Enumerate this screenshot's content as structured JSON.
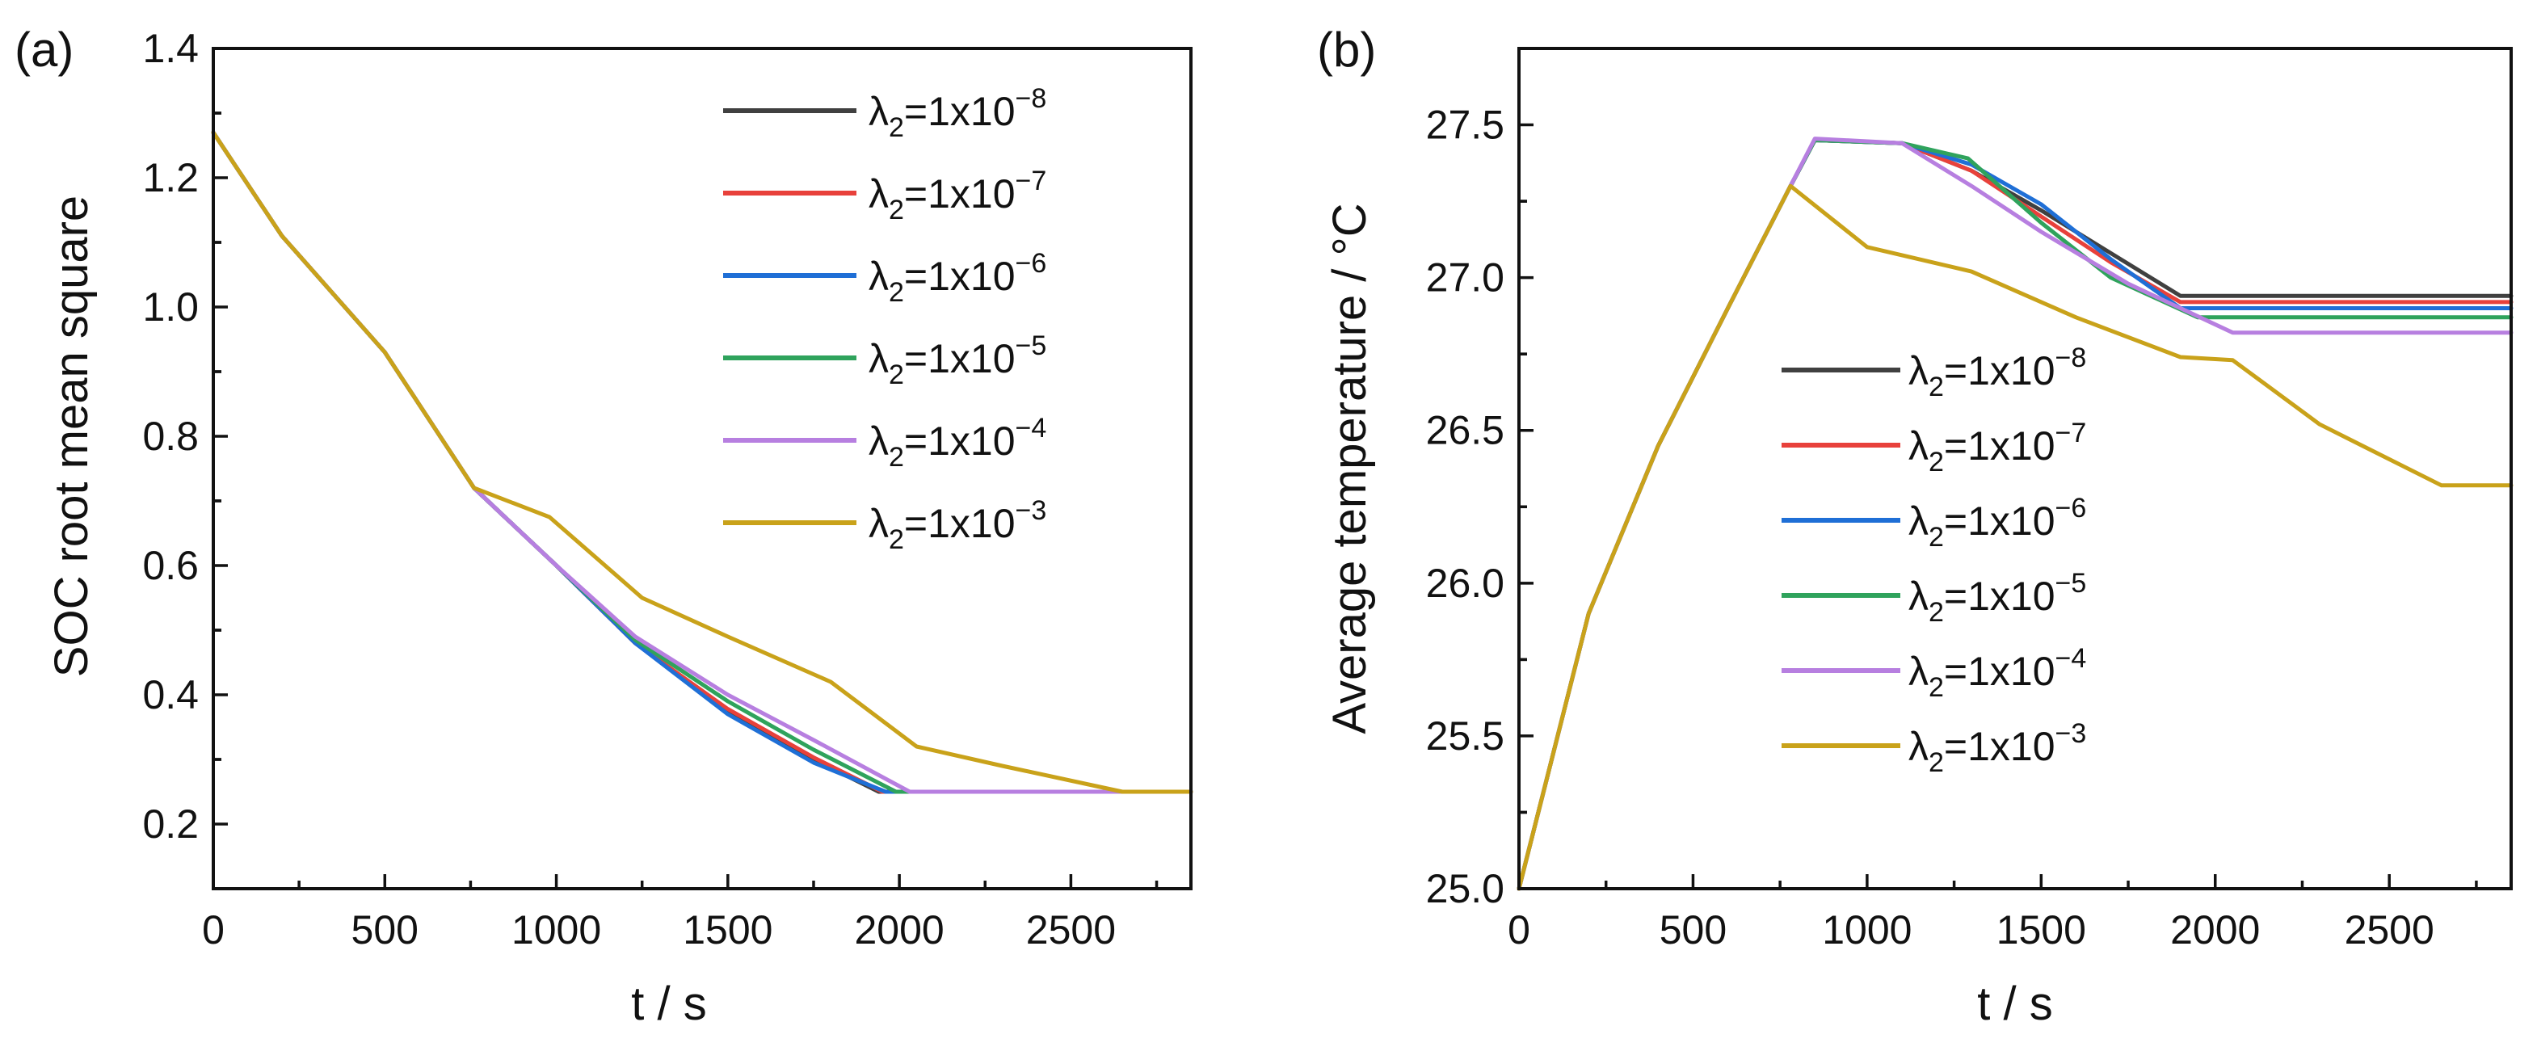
{
  "figure": {
    "panels": [
      {
        "panel_label": "(a)",
        "xlabel": "t / s",
        "ylabel": "SOC root mean square",
        "xlim": [
          0,
          2850
        ],
        "ylim": [
          0.1,
          1.4
        ],
        "xticks": [
          0,
          500,
          1000,
          1500,
          2000,
          2500
        ],
        "xtick_labels": [
          "0",
          "500",
          "1000",
          "1500",
          "2000",
          "2500"
        ],
        "yticks": [
          0.2,
          0.4,
          0.6,
          0.8,
          1.0,
          1.2,
          1.4
        ],
        "ytick_labels": [
          "0.2",
          "0.4",
          "0.6",
          "0.8",
          "1.0",
          "1.2",
          "1.4"
        ]
      },
      {
        "panel_label": "(b)",
        "xlabel": "t / s",
        "ylabel": "Average temperature / °C",
        "xlim": [
          0,
          2850
        ],
        "ylim": [
          25.0,
          27.75
        ],
        "xticks": [
          0,
          500,
          1000,
          1500,
          2000,
          2500
        ],
        "xtick_labels": [
          "0",
          "500",
          "1000",
          "1500",
          "2000",
          "2500"
        ],
        "yticks": [
          25.0,
          25.5,
          26.0,
          26.5,
          27.0,
          27.5
        ],
        "ytick_labels": [
          "25.0",
          "25.5",
          "26.0",
          "26.5",
          "27.0",
          "27.5"
        ]
      }
    ],
    "legend": [
      {
        "prefix": "λ",
        "sub": "2",
        "mid": "=1x10",
        "sup": "−8",
        "color": "#404040"
      },
      {
        "prefix": "λ",
        "sub": "2",
        "mid": "=1x10",
        "sup": "−7",
        "color": "#e8413b"
      },
      {
        "prefix": "λ",
        "sub": "2",
        "mid": "=1x10",
        "sup": "−6",
        "color": "#1f6fd6"
      },
      {
        "prefix": "λ",
        "sub": "2",
        "mid": "=1x10",
        "sup": "−5",
        "color": "#2fa35c"
      },
      {
        "prefix": "λ",
        "sub": "2",
        "mid": "=1x10",
        "sup": "−4",
        "color": "#b77fe0"
      },
      {
        "prefix": "λ",
        "sub": "2",
        "mid": "=1x10",
        "sup": "−3",
        "color": "#c9a21a"
      }
    ]
  },
  "chart_data": [
    {
      "type": "line",
      "title": "",
      "xlabel": "t / s",
      "ylabel": "SOC root mean square",
      "xlim": [
        0,
        2850
      ],
      "ylim": [
        0.1,
        1.4
      ],
      "series": [
        {
          "name": "λ2=1x10−8",
          "color": "#404040",
          "x": [
            0,
            200,
            500,
            760,
            840,
            1000,
            1230,
            1500,
            1750,
            1940,
            1950,
            2000,
            2850
          ],
          "y": [
            1.27,
            1.11,
            0.93,
            0.72,
            0.68,
            0.6,
            0.48,
            0.375,
            0.3,
            0.25,
            0.25,
            0.25,
            0.25
          ]
        },
        {
          "name": "λ2=1x10−7",
          "color": "#e8413b",
          "x": [
            0,
            200,
            500,
            760,
            840,
            1000,
            1230,
            1500,
            1750,
            1950,
            2000,
            2850
          ],
          "y": [
            1.27,
            1.11,
            0.93,
            0.72,
            0.68,
            0.6,
            0.48,
            0.378,
            0.303,
            0.25,
            0.25,
            0.25
          ]
        },
        {
          "name": "λ2=1x10−6",
          "color": "#1f6fd6",
          "x": [
            0,
            200,
            500,
            760,
            840,
            1000,
            1230,
            1500,
            1750,
            1960,
            2000,
            2850
          ],
          "y": [
            1.27,
            1.11,
            0.93,
            0.72,
            0.68,
            0.6,
            0.48,
            0.37,
            0.295,
            0.25,
            0.25,
            0.25
          ]
        },
        {
          "name": "λ2=1x10−5",
          "color": "#2fa35c",
          "x": [
            0,
            200,
            500,
            760,
            840,
            1000,
            1230,
            1500,
            1750,
            1990,
            2020,
            2850
          ],
          "y": [
            1.27,
            1.11,
            0.93,
            0.72,
            0.68,
            0.6,
            0.485,
            0.39,
            0.315,
            0.25,
            0.25,
            0.25
          ]
        },
        {
          "name": "λ2=1x10−4",
          "color": "#b77fe0",
          "x": [
            0,
            200,
            500,
            760,
            840,
            1000,
            1230,
            1500,
            1750,
            2030,
            2050,
            2850
          ],
          "y": [
            1.27,
            1.11,
            0.93,
            0.72,
            0.68,
            0.6,
            0.49,
            0.4,
            0.33,
            0.25,
            0.25,
            0.25
          ]
        },
        {
          "name": "λ2=1x10−3",
          "color": "#c9a21a",
          "x": [
            0,
            200,
            500,
            760,
            980,
            1250,
            1500,
            1800,
            2050,
            2300,
            2650,
            2850
          ],
          "y": [
            1.27,
            1.11,
            0.93,
            0.72,
            0.675,
            0.55,
            0.49,
            0.42,
            0.32,
            0.29,
            0.25,
            0.25
          ]
        }
      ]
    },
    {
      "type": "line",
      "title": "",
      "xlabel": "t / s",
      "ylabel": "Average temperature / °C",
      "xlim": [
        0,
        2850
      ],
      "ylim": [
        25.0,
        27.75
      ],
      "series": [
        {
          "name": "λ2=1x10−8",
          "color": "#404040",
          "x": [
            0,
            200,
            400,
            600,
            780,
            850,
            1100,
            1300,
            1500,
            1700,
            1900,
            2850
          ],
          "y": [
            25.0,
            25.9,
            26.45,
            26.9,
            27.3,
            27.45,
            27.44,
            27.35,
            27.22,
            27.08,
            26.94,
            26.94
          ]
        },
        {
          "name": "λ2=1x10−7",
          "color": "#e8413b",
          "x": [
            0,
            200,
            400,
            600,
            780,
            850,
            1100,
            1300,
            1500,
            1700,
            1900,
            2850
          ],
          "y": [
            25.0,
            25.9,
            26.45,
            26.9,
            27.3,
            27.45,
            27.44,
            27.35,
            27.2,
            27.05,
            26.92,
            26.92
          ]
        },
        {
          "name": "λ2=1x10−6",
          "color": "#1f6fd6",
          "x": [
            0,
            200,
            400,
            600,
            780,
            850,
            1100,
            1300,
            1500,
            1700,
            1900,
            2850
          ],
          "y": [
            25.0,
            25.9,
            26.45,
            26.9,
            27.3,
            27.45,
            27.44,
            27.37,
            27.24,
            27.06,
            26.9,
            26.9
          ]
        },
        {
          "name": "λ2=1x10−5",
          "color": "#2fa35c",
          "x": [
            0,
            200,
            400,
            600,
            780,
            850,
            1100,
            1290,
            1500,
            1700,
            1950,
            2850
          ],
          "y": [
            25.0,
            25.9,
            26.45,
            26.9,
            27.3,
            27.45,
            27.44,
            27.39,
            27.18,
            27.0,
            26.87,
            26.87
          ]
        },
        {
          "name": "λ2=1x10−4",
          "color": "#b77fe0",
          "x": [
            0,
            200,
            400,
            600,
            780,
            850,
            1100,
            1300,
            1500,
            1750,
            2050,
            2850
          ],
          "y": [
            25.0,
            25.9,
            26.45,
            26.9,
            27.3,
            27.455,
            27.44,
            27.3,
            27.15,
            26.98,
            26.82,
            26.82
          ]
        },
        {
          "name": "λ2=1x10−3",
          "color": "#c9a21a",
          "x": [
            0,
            200,
            400,
            600,
            780,
            1000,
            1300,
            1600,
            1900,
            2050,
            2300,
            2650,
            2850
          ],
          "y": [
            25.0,
            25.9,
            26.45,
            26.9,
            27.3,
            27.1,
            27.02,
            26.87,
            26.74,
            26.73,
            26.52,
            26.32,
            26.32
          ]
        }
      ]
    }
  ]
}
